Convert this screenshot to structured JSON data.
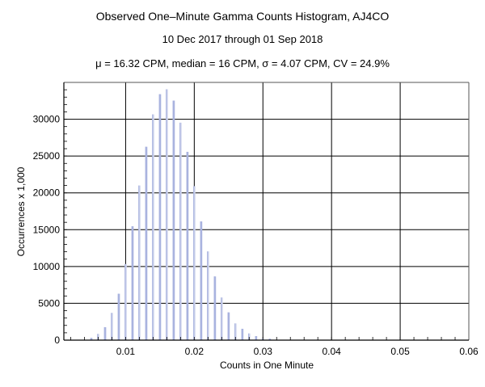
{
  "chart_data": {
    "type": "bar",
    "title": "Observed One–Minute Gamma Counts Histogram, AJ4CO",
    "subtitle": "10 Dec 2017 through 01 Sep 2018",
    "stats_line": "μ = 16.32 CPM,   median = 16 CPM,   σ = 4.07 CPM,   CV = 24.9%",
    "xlabel": "Counts in One Minute",
    "ylabel": "Occurrences x 1,000",
    "xlim": [
      0.001,
      0.06
    ],
    "ylim": [
      0,
      35000
    ],
    "xticks": [
      0.01,
      0.02,
      0.03,
      0.04,
      0.05,
      0.06
    ],
    "xtick_labels": [
      "0.01",
      "0.02",
      "0.03",
      "0.04",
      "0.05",
      "0.06"
    ],
    "yticks": [
      0,
      5000,
      10000,
      15000,
      20000,
      25000,
      30000
    ],
    "ytick_labels": [
      "0",
      "5000",
      "10000",
      "15000",
      "20000",
      "25000",
      "30000"
    ],
    "grid": true,
    "x": [
      0.005,
      0.006,
      0.007,
      0.008,
      0.009,
      0.01,
      0.011,
      0.012,
      0.013,
      0.014,
      0.015,
      0.016,
      0.017,
      0.018,
      0.019,
      0.02,
      0.021,
      0.022,
      0.023,
      0.024,
      0.025,
      0.026,
      0.027,
      0.028,
      0.029,
      0.03,
      0.031
    ],
    "values": [
      300,
      850,
      1760,
      3700,
      6300,
      10330,
      15460,
      21000,
      26260,
      30660,
      33400,
      34070,
      32530,
      29530,
      25570,
      20910,
      16120,
      12050,
      8650,
      5790,
      3770,
      2270,
      1540,
      910,
      550,
      220,
      190
    ],
    "colors": {
      "bar_primary": "#a9b3df",
      "bar_secondary": "#d3d8ee",
      "grid": "#000000"
    }
  }
}
